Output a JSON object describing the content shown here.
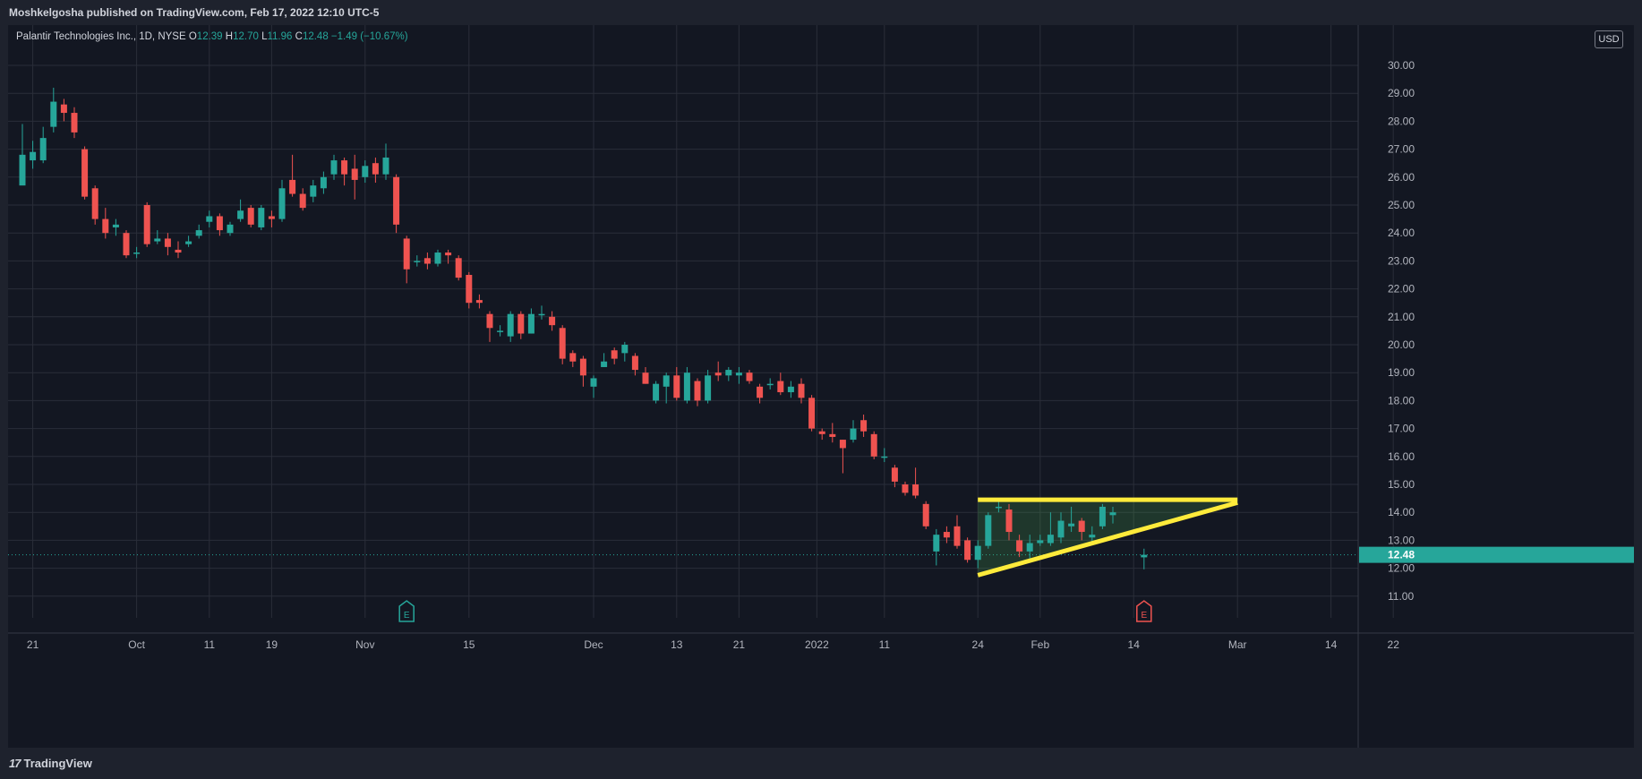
{
  "header": {
    "publisher_text": "Moshkelgosha published on TradingView.com, Feb 17, 2022 12:10 UTC-5"
  },
  "legend": {
    "symbol": "Palantir Technologies Inc., 1D, NYSE",
    "open_label": "O",
    "open": "12.39",
    "high_label": "H",
    "high": "12.70",
    "low_label": "L",
    "low": "11.96",
    "close_label": "C",
    "close": "12.48",
    "change": "−1.49 (−10.67%)"
  },
  "currency": "USD",
  "price_label": "12.48",
  "footer": {
    "brand": "TradingView",
    "brand_mark": "17"
  },
  "events": {
    "earnings_icon": "E"
  },
  "colors": {
    "up": "#26a69a",
    "down": "#ef5350",
    "pattern": "#ffeb3b",
    "background": "#131722"
  },
  "chart_data": {
    "type": "candlestick",
    "ylim": [
      10.2,
      31.2
    ],
    "y_ticks": [
      11,
      12,
      13,
      14,
      15,
      16,
      17,
      18,
      19,
      20,
      21,
      22,
      23,
      24,
      25,
      26,
      27,
      28,
      29,
      30
    ],
    "y_tick_labels": [
      "11.00",
      "12.00",
      "13.00",
      "14.00",
      "15.00",
      "16.00",
      "17.00",
      "18.00",
      "19.00",
      "20.00",
      "21.00",
      "22.00",
      "23.00",
      "24.00",
      "25.00",
      "26.00",
      "27.00",
      "28.00",
      "29.00",
      "30.00"
    ],
    "x_ticks": [
      {
        "label": "21",
        "i": 1
      },
      {
        "label": "Oct",
        "i": 11
      },
      {
        "label": "11",
        "i": 18
      },
      {
        "label": "19",
        "i": 24
      },
      {
        "label": "Nov",
        "i": 33
      },
      {
        "label": "15",
        "i": 43
      },
      {
        "label": "Dec",
        "i": 55
      },
      {
        "label": "13",
        "i": 63
      },
      {
        "label": "21",
        "i": 69
      },
      {
        "label": "2022",
        "i": 76.5
      },
      {
        "label": "11",
        "i": 83
      },
      {
        "label": "24",
        "i": 92
      },
      {
        "label": "Feb",
        "i": 98
      },
      {
        "label": "14",
        "i": 107
      },
      {
        "label": "Mar",
        "i": 117
      },
      {
        "label": "14",
        "i": 126
      },
      {
        "label": "22",
        "i": 132
      }
    ],
    "candles": [
      [
        25.7,
        26.8,
        27.9,
        26.3
      ],
      [
        26.6,
        26.9,
        27.3,
        26.3
      ],
      [
        26.6,
        27.4,
        27.8,
        26.5
      ],
      [
        27.8,
        28.7,
        29.2,
        27.6
      ],
      [
        28.6,
        28.3,
        28.8,
        28.0
      ],
      [
        28.3,
        27.6,
        28.5,
        27.4
      ],
      [
        27.0,
        25.3,
        27.1,
        25.2
      ],
      [
        25.6,
        24.5,
        25.7,
        24.3
      ],
      [
        24.5,
        24.0,
        24.9,
        23.8
      ],
      [
        24.2,
        24.3,
        24.5,
        23.9
      ],
      [
        24.0,
        23.2,
        24.1,
        23.1
      ],
      [
        23.3,
        23.3,
        23.5,
        23.1
      ],
      [
        25.0,
        23.6,
        25.1,
        23.5
      ],
      [
        23.7,
        23.8,
        24.1,
        23.6
      ],
      [
        23.8,
        23.5,
        24.0,
        23.2
      ],
      [
        23.4,
        23.3,
        23.7,
        23.1
      ],
      [
        23.6,
        23.7,
        23.9,
        23.5
      ],
      [
        23.9,
        24.1,
        24.3,
        23.8
      ],
      [
        24.4,
        24.6,
        24.8,
        24.2
      ],
      [
        24.6,
        24.1,
        24.7,
        23.9
      ],
      [
        24.0,
        24.3,
        24.4,
        23.9
      ],
      [
        24.5,
        24.8,
        25.2,
        24.4
      ],
      [
        24.9,
        24.3,
        25.0,
        24.2
      ],
      [
        24.2,
        24.9,
        25.0,
        24.1
      ],
      [
        24.6,
        24.5,
        24.8,
        24.2
      ],
      [
        24.5,
        25.6,
        25.9,
        24.4
      ],
      [
        25.9,
        25.4,
        26.8,
        25.3
      ],
      [
        25.4,
        24.9,
        25.6,
        24.8
      ],
      [
        25.3,
        25.7,
        25.9,
        25.1
      ],
      [
        25.6,
        26.0,
        26.2,
        25.4
      ],
      [
        26.1,
        26.6,
        26.8,
        25.9
      ],
      [
        26.6,
        26.1,
        26.7,
        25.7
      ],
      [
        26.3,
        25.9,
        26.8,
        25.2
      ],
      [
        26.0,
        26.4,
        26.6,
        25.8
      ],
      [
        26.5,
        26.1,
        26.7,
        25.8
      ],
      [
        26.1,
        26.7,
        27.2,
        25.9
      ],
      [
        26.0,
        24.3,
        26.1,
        24.0
      ],
      [
        23.8,
        22.7,
        23.9,
        22.2
      ],
      [
        23.0,
        23.0,
        23.2,
        22.8
      ],
      [
        23.1,
        22.9,
        23.3,
        22.7
      ],
      [
        22.9,
        23.3,
        23.4,
        22.8
      ],
      [
        23.3,
        23.2,
        23.4,
        22.9
      ],
      [
        23.1,
        22.4,
        23.2,
        22.3
      ],
      [
        22.5,
        21.5,
        22.6,
        21.3
      ],
      [
        21.6,
        21.5,
        21.8,
        21.3
      ],
      [
        21.1,
        20.6,
        21.2,
        20.1
      ],
      [
        20.5,
        20.5,
        20.7,
        20.3
      ],
      [
        20.3,
        21.1,
        21.2,
        20.1
      ],
      [
        21.1,
        20.4,
        21.2,
        20.2
      ],
      [
        20.4,
        21.1,
        21.3,
        20.4
      ],
      [
        21.1,
        21.1,
        21.4,
        20.9
      ],
      [
        21.0,
        20.7,
        21.2,
        20.5
      ],
      [
        20.6,
        19.5,
        20.7,
        19.3
      ],
      [
        19.7,
        19.4,
        19.8,
        19.2
      ],
      [
        19.5,
        18.9,
        19.6,
        18.5
      ],
      [
        18.5,
        18.8,
        18.9,
        18.1
      ],
      [
        19.2,
        19.4,
        19.7,
        19.2
      ],
      [
        19.8,
        19.5,
        19.9,
        19.3
      ],
      [
        19.7,
        20.0,
        20.1,
        19.4
      ],
      [
        19.6,
        19.1,
        19.7,
        18.9
      ],
      [
        19.0,
        18.6,
        19.2,
        18.6
      ],
      [
        18.0,
        18.6,
        18.7,
        17.9
      ],
      [
        18.5,
        18.9,
        19.0,
        17.9
      ],
      [
        18.9,
        18.1,
        19.2,
        18.0
      ],
      [
        18.0,
        19.0,
        19.2,
        17.9
      ],
      [
        18.7,
        18.0,
        18.8,
        17.8
      ],
      [
        18.0,
        18.9,
        19.1,
        17.9
      ],
      [
        19.0,
        18.9,
        19.4,
        18.7
      ],
      [
        18.9,
        19.1,
        19.2,
        18.7
      ],
      [
        18.9,
        19.0,
        19.2,
        18.6
      ],
      [
        19.0,
        18.7,
        19.1,
        18.6
      ],
      [
        18.5,
        18.1,
        18.6,
        17.9
      ],
      [
        18.6,
        18.6,
        18.8,
        18.4
      ],
      [
        18.7,
        18.3,
        19.0,
        18.2
      ],
      [
        18.3,
        18.5,
        18.7,
        18.1
      ],
      [
        18.6,
        18.1,
        18.8,
        17.9
      ],
      [
        18.1,
        17.0,
        18.2,
        16.9
      ],
      [
        16.9,
        16.8,
        17.0,
        16.6
      ],
      [
        16.8,
        16.7,
        17.2,
        16.5
      ],
      [
        16.6,
        16.3,
        16.6,
        15.4
      ],
      [
        16.6,
        17.0,
        17.3,
        16.5
      ],
      [
        17.3,
        16.9,
        17.5,
        16.7
      ],
      [
        16.8,
        16.0,
        16.9,
        15.9
      ],
      [
        16.0,
        16.0,
        16.3,
        15.8
      ],
      [
        15.6,
        15.1,
        15.7,
        14.9
      ],
      [
        15.0,
        14.7,
        15.1,
        14.6
      ],
      [
        15.0,
        14.6,
        15.6,
        14.5
      ],
      [
        14.3,
        13.5,
        14.4,
        13.4
      ],
      [
        12.6,
        13.2,
        13.4,
        12.1
      ],
      [
        13.3,
        13.1,
        13.5,
        12.9
      ],
      [
        13.5,
        12.8,
        13.9,
        12.7
      ],
      [
        13.0,
        12.3,
        13.1,
        12.2
      ],
      [
        12.3,
        12.8,
        13.0,
        12.0
      ],
      [
        12.8,
        13.9,
        14.0,
        12.7
      ],
      [
        14.2,
        14.2,
        14.4,
        14.0
      ],
      [
        14.1,
        13.3,
        14.3,
        13.0
      ],
      [
        13.0,
        12.6,
        13.2,
        12.4
      ],
      [
        12.6,
        12.9,
        13.2,
        12.3
      ],
      [
        12.9,
        13.0,
        13.2,
        12.8
      ],
      [
        12.9,
        13.2,
        14.0,
        12.8
      ],
      [
        13.1,
        13.7,
        14.0,
        12.9
      ],
      [
        13.5,
        13.6,
        14.2,
        13.3
      ],
      [
        13.7,
        13.3,
        13.8,
        13.0
      ],
      [
        13.1,
        13.2,
        13.5,
        12.9
      ],
      [
        13.5,
        14.2,
        14.3,
        13.4
      ],
      [
        13.9,
        14.0,
        14.2,
        13.6
      ],
      [
        12.39,
        12.48,
        12.7,
        11.96
      ]
    ],
    "candle_indices": "0-104 sequential; last candle at index 108",
    "pattern": {
      "type": "ascending triangle",
      "resistance": {
        "from_i": 92,
        "to_i": 117,
        "price": 14.45
      },
      "support": {
        "from_i": 92,
        "from_price": 11.75,
        "to_i": 117,
        "to_price": 14.35
      }
    },
    "last_price": 12.48,
    "earnings_markers_i": [
      37,
      108
    ]
  }
}
